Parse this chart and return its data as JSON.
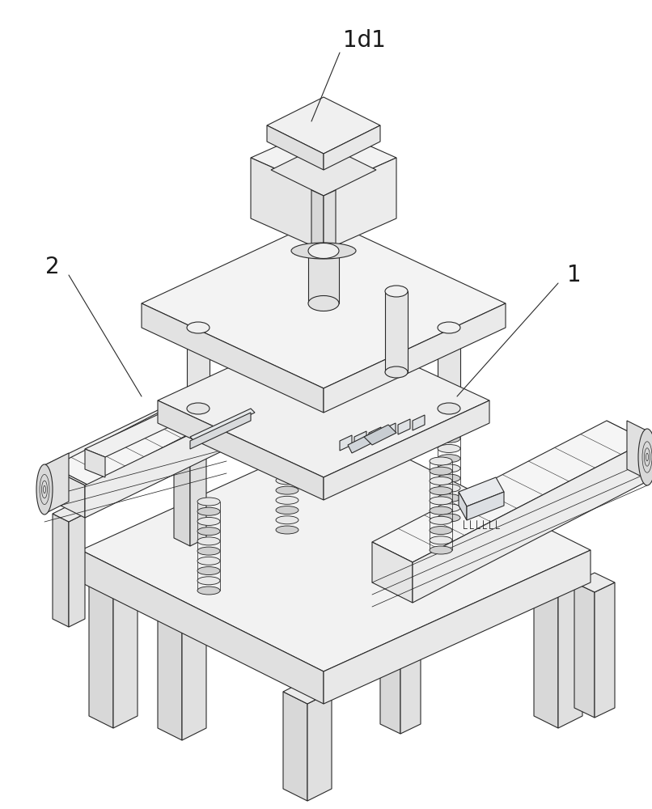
{
  "fig_width": 8.06,
  "fig_height": 10.0,
  "dpi": 100,
  "background_color": "#ffffff",
  "edge_color": "#2a2a2a",
  "face_light": "#f5f5f5",
  "face_mid": "#ebebeb",
  "face_dark": "#dedede",
  "face_side": "#e0e0e0",
  "lw": 0.8,
  "label_1d1": "1d1",
  "label_2": "2",
  "label_1": "1",
  "label_fontsize": 20
}
